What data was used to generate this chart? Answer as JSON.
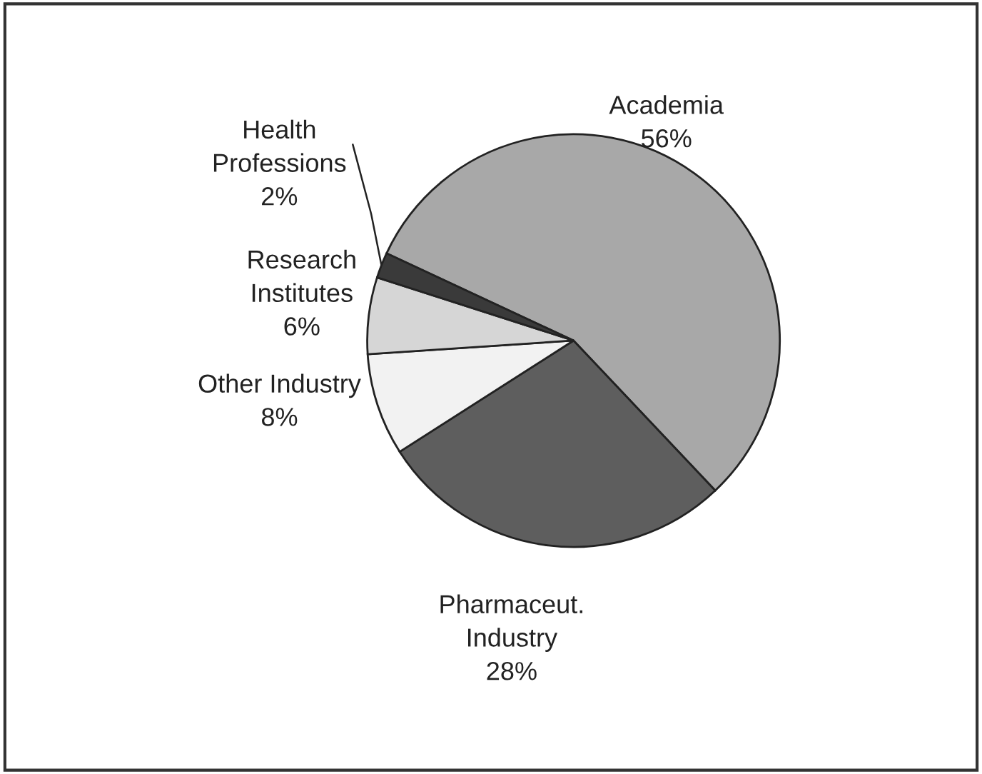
{
  "chart_data": {
    "type": "pie",
    "categories": [
      "Academia",
      "Pharmaceut. Industry",
      "Other Industry",
      "Research Institutes",
      "Health Professions"
    ],
    "values": [
      56,
      28,
      8,
      6,
      2
    ],
    "colors": [
      "#a8a8a8",
      "#5e5e5e",
      "#f2f2f2",
      "#d6d6d6",
      "#3a3a3a"
    ],
    "value_labels": [
      "56%",
      "28%",
      "8%",
      "6%",
      "2%"
    ]
  }
}
